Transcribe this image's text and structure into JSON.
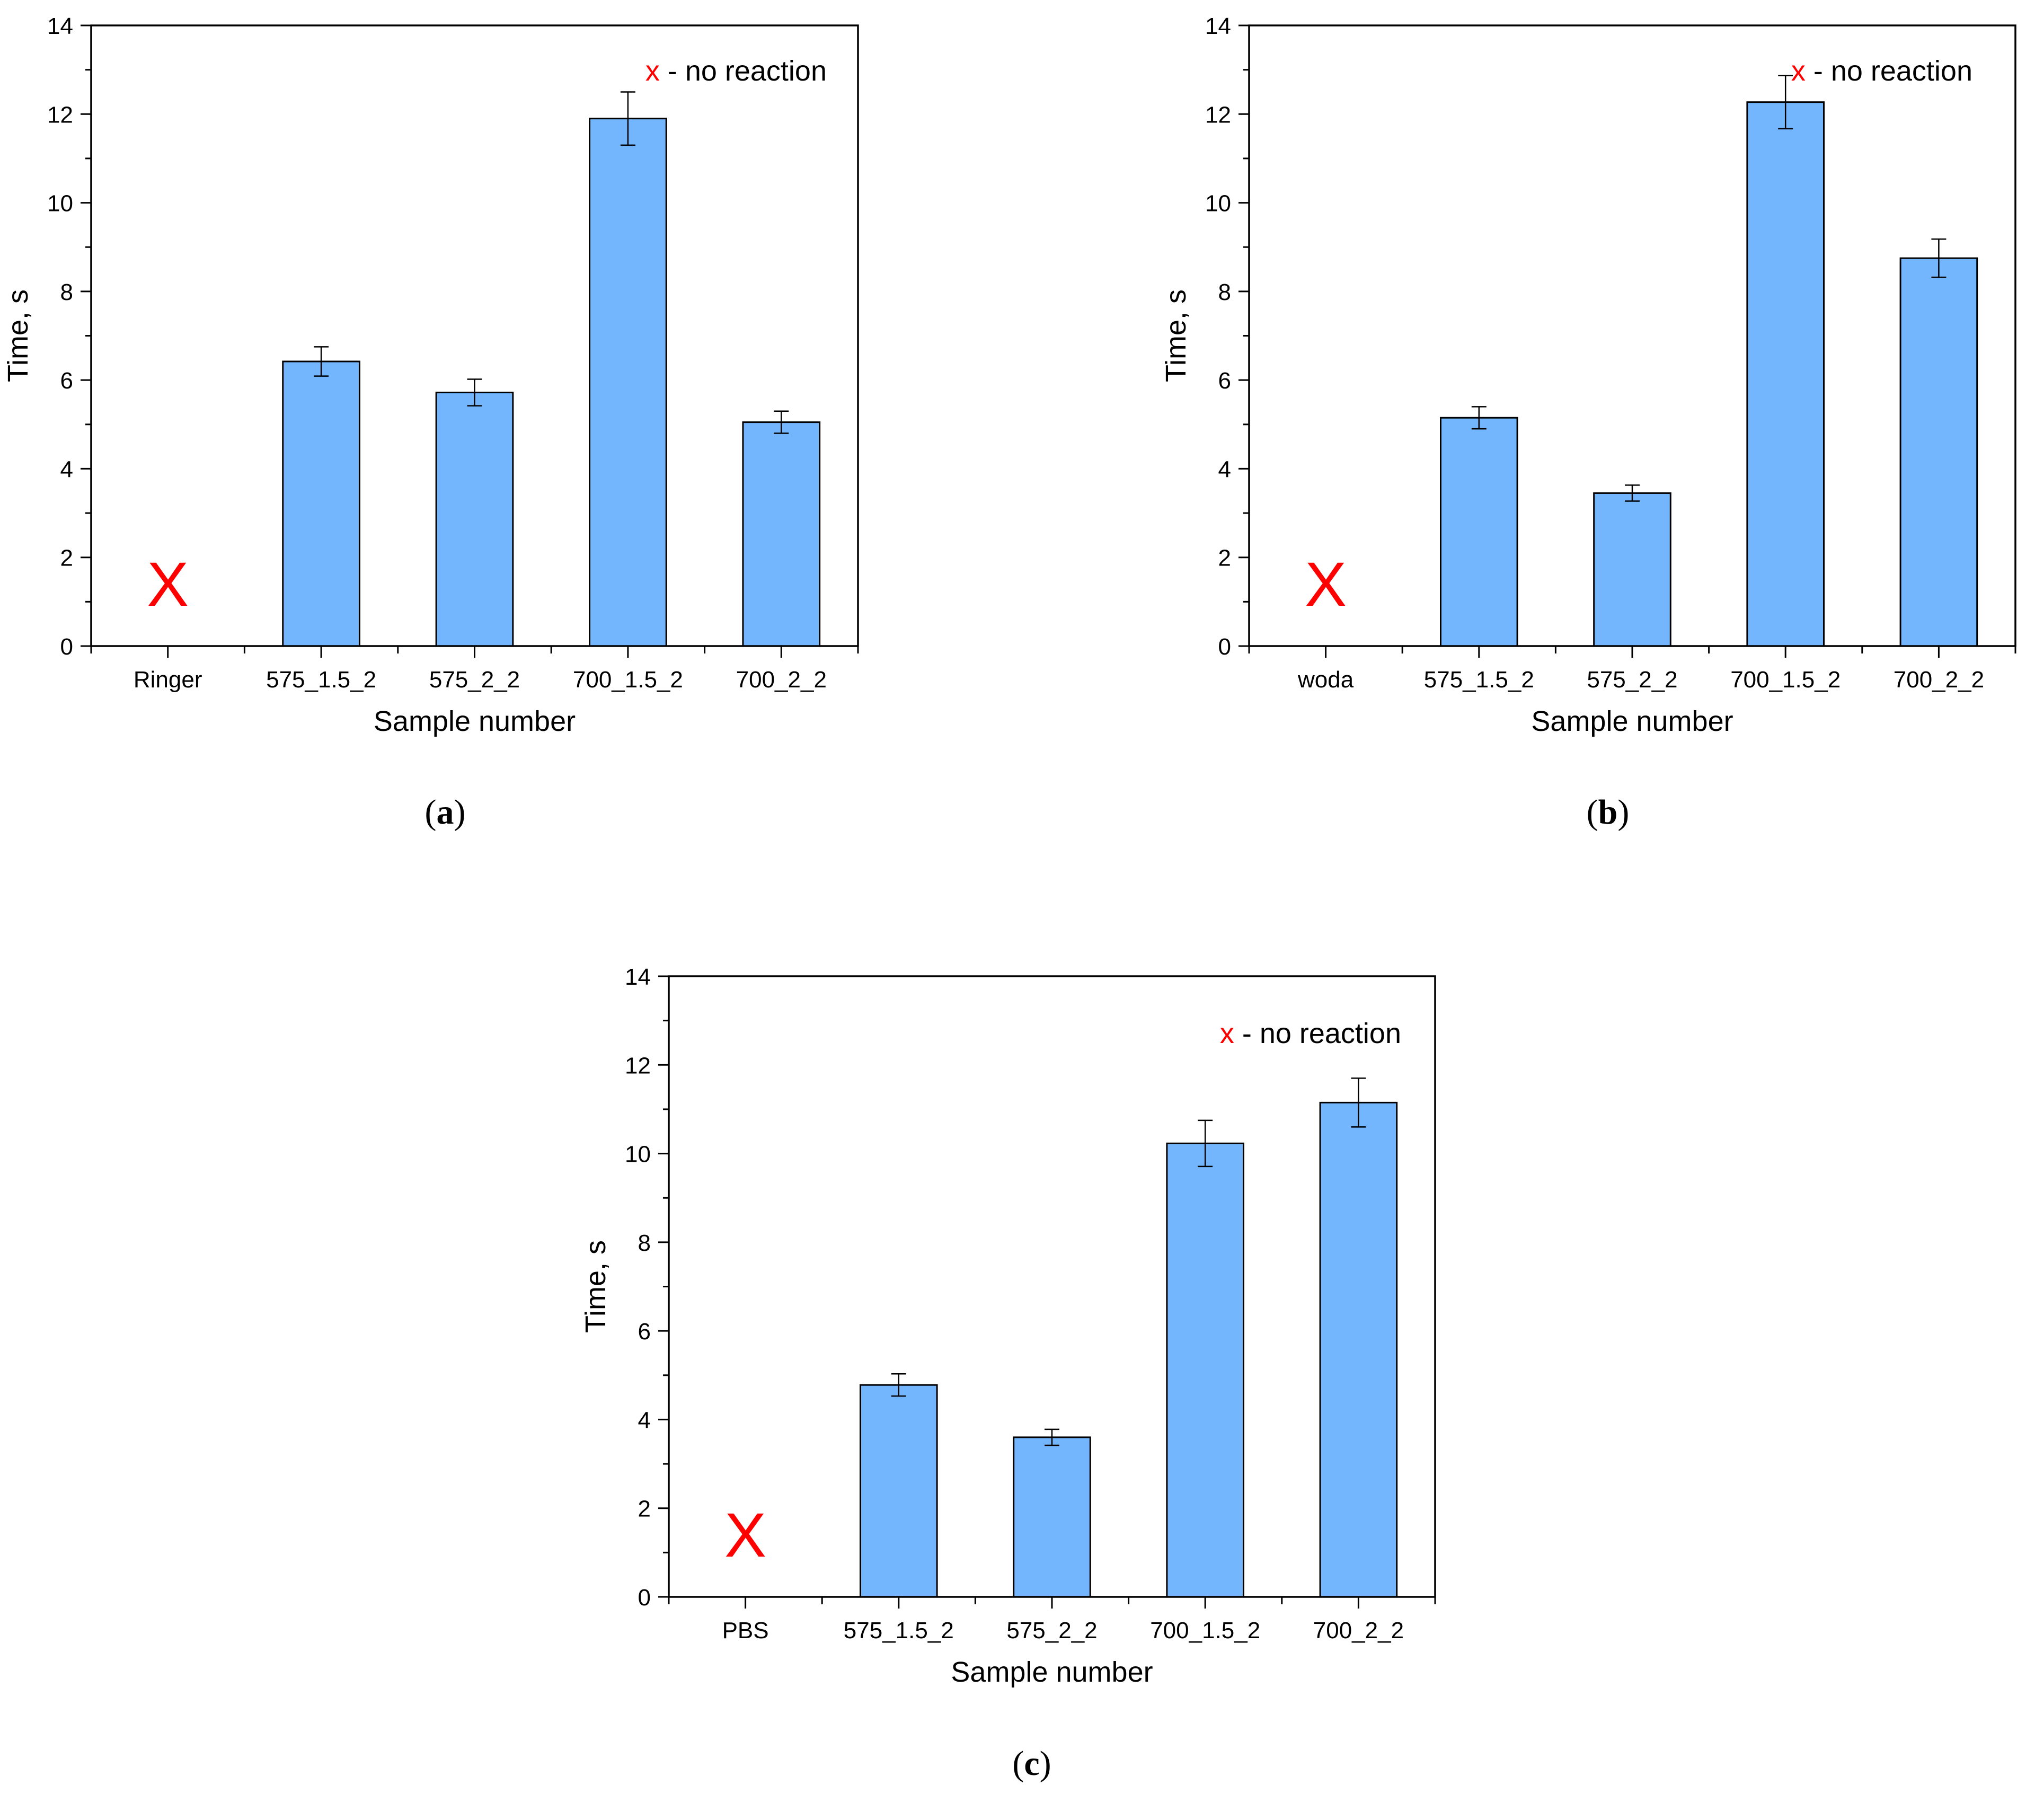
{
  "chart_data": [
    {
      "type": "bar",
      "panel_label": "a",
      "title": "",
      "xlabel": "Sample number",
      "ylabel": "Time, s",
      "ylim": [
        0,
        14
      ],
      "yticks": [
        0,
        2,
        4,
        6,
        8,
        10,
        12,
        14
      ],
      "categories": [
        "Ringer",
        "575_1.5_2",
        "575_2_2",
        "700_1.5_2",
        "700_2_2"
      ],
      "values": [
        null,
        6.42,
        5.72,
        11.9,
        5.05
      ],
      "errors": [
        null,
        0.33,
        0.3,
        0.6,
        0.25
      ],
      "no_reaction_marker": "X",
      "annotation": {
        "marker": "x",
        "text": " - no reaction"
      },
      "bar_color": "#74b6fd",
      "marker_color": "#ff0000"
    },
    {
      "type": "bar",
      "panel_label": "b",
      "title": "",
      "xlabel": "Sample number",
      "ylabel": "Time, s",
      "ylim": [
        0,
        14
      ],
      "yticks": [
        0,
        2,
        4,
        6,
        8,
        10,
        12,
        14
      ],
      "categories": [
        "woda",
        "575_1.5_2",
        "575_2_2",
        "700_1.5_2",
        "700_2_2"
      ],
      "values": [
        null,
        5.15,
        3.45,
        12.27,
        8.75
      ],
      "errors": [
        null,
        0.25,
        0.18,
        0.6,
        0.43
      ],
      "no_reaction_marker": "X",
      "annotation": {
        "marker": "x",
        "text": " - no reaction"
      },
      "bar_color": "#74b6fd",
      "marker_color": "#ff0000"
    },
    {
      "type": "bar",
      "panel_label": "c",
      "title": "",
      "xlabel": "Sample number",
      "ylabel": "Time, s",
      "ylim": [
        0,
        14
      ],
      "yticks": [
        0,
        2,
        4,
        6,
        8,
        10,
        12,
        14
      ],
      "categories": [
        "PBS",
        "575_1.5_2",
        "575_2_2",
        "700_1.5_2",
        "700_2_2"
      ],
      "values": [
        null,
        4.78,
        3.6,
        10.23,
        11.15
      ],
      "errors": [
        null,
        0.25,
        0.18,
        0.52,
        0.55
      ],
      "no_reaction_marker": "X",
      "annotation": {
        "marker": "x",
        "text": " - no reaction"
      },
      "bar_color": "#74b6fd",
      "marker_color": "#ff0000"
    }
  ]
}
